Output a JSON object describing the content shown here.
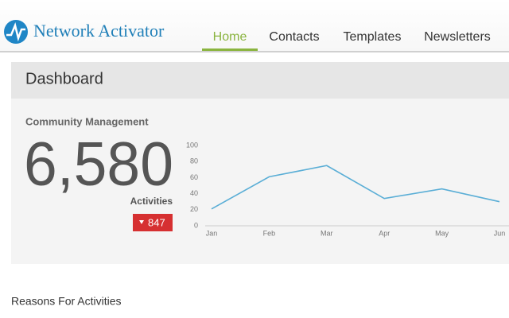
{
  "header": {
    "brand": "Network Activator"
  },
  "nav": {
    "items": [
      "Home",
      "Contacts",
      "Templates",
      "Newsletters"
    ],
    "active": 0
  },
  "dashboard": {
    "title": "Dashboard",
    "section": "Community Management",
    "total": "6,580",
    "total_label": "Activities",
    "change": "847"
  },
  "chart_data": {
    "type": "line",
    "categories": [
      "Jan",
      "Feb",
      "Mar",
      "Apr",
      "May",
      "Jun"
    ],
    "values": [
      21,
      61,
      75,
      34,
      46,
      30
    ],
    "color": "#5aaed6",
    "ylim": [
      0,
      100
    ],
    "yticks": [
      0,
      20,
      40,
      60,
      80,
      100
    ],
    "grid": false
  },
  "footer": {
    "heading": "Reasons For Activities"
  }
}
